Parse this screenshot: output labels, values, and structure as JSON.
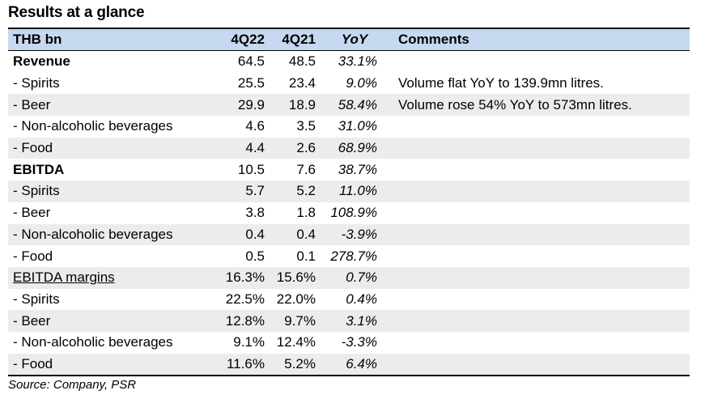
{
  "title": "Results at a glance",
  "header": {
    "label": "THB bn",
    "q22": "4Q22",
    "q21": "4Q21",
    "yoy": "YoY",
    "comments": "Comments"
  },
  "rows": [
    {
      "label": "Revenue",
      "q22": "64.5",
      "q21": "48.5",
      "yoy": "33.1%",
      "comment": ""
    },
    {
      "label": " - Spirits",
      "q22": "25.5",
      "q21": "23.4",
      "yoy": "9.0%",
      "comment": "Volume flat YoY to 139.9mn litres."
    },
    {
      "label": " - Beer",
      "q22": "29.9",
      "q21": "18.9",
      "yoy": "58.4%",
      "comment": "Volume rose 54% YoY to 573mn litres."
    },
    {
      "label": " - Non-alcoholic beverages",
      "q22": "4.6",
      "q21": "3.5",
      "yoy": "31.0%",
      "comment": ""
    },
    {
      "label": " - Food",
      "q22": "4.4",
      "q21": "2.6",
      "yoy": "68.9%",
      "comment": ""
    },
    {
      "label": "EBITDA",
      "q22": "10.5",
      "q21": "7.6",
      "yoy": "38.7%",
      "comment": ""
    },
    {
      "label": " - Spirits",
      "q22": "5.7",
      "q21": "5.2",
      "yoy": "11.0%",
      "comment": ""
    },
    {
      "label": " - Beer",
      "q22": "3.8",
      "q21": "1.8",
      "yoy": "108.9%",
      "comment": ""
    },
    {
      "label": " - Non-alcoholic beverages",
      "q22": "0.4",
      "q21": "0.4",
      "yoy": "-3.9%",
      "comment": ""
    },
    {
      "label": " - Food",
      "q22": "0.5",
      "q21": "0.1",
      "yoy": "278.7%",
      "comment": ""
    },
    {
      "label": "EBITDA margins",
      "q22": "16.3%",
      "q21": "15.6%",
      "yoy": "0.7%",
      "comment": ""
    },
    {
      "label": " - Spirits",
      "q22": "22.5%",
      "q21": "22.0%",
      "yoy": "0.4%",
      "comment": ""
    },
    {
      "label": " - Beer",
      "q22": "12.8%",
      "q21": "9.7%",
      "yoy": "3.1%",
      "comment": ""
    },
    {
      "label": " - Non-alcoholic beverages",
      "q22": "9.1%",
      "q21": "12.4%",
      "yoy": "-3.3%",
      "comment": ""
    },
    {
      "label": " - Food",
      "q22": "11.6%",
      "q21": "5.2%",
      "yoy": "6.4%",
      "comment": ""
    }
  ],
  "source": "Source: Company, PSR"
}
